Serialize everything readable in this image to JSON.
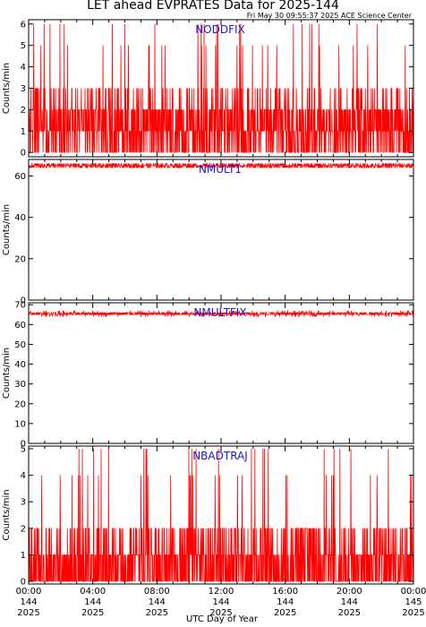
{
  "title": "LET ahead EVPRATES Data for 2025-144",
  "timestamp": "Fri May 30 09:55:37 2025 ACE Science Center",
  "x_axis_label": "UTC Day of Year",
  "colors": {
    "data": "#ff0000",
    "panel_label": "#1a1acc",
    "axes": "#000000"
  },
  "x_ticks": [
    {
      "time": "00:00",
      "day": "144",
      "year": "2025"
    },
    {
      "time": "04:00",
      "day": "144",
      "year": "2025"
    },
    {
      "time": "08:00",
      "day": "144",
      "year": "2025"
    },
    {
      "time": "12:00",
      "day": "144",
      "year": "2025"
    },
    {
      "time": "16:00",
      "day": "144",
      "year": "2025"
    },
    {
      "time": "20:00",
      "day": "144",
      "year": "2025"
    },
    {
      "time": "00:00",
      "day": "145",
      "year": "2025"
    }
  ],
  "chart_data": [
    {
      "type": "line",
      "label": "NODDFIX",
      "ylabel": "Counts/min",
      "xlim": [
        0,
        24
      ],
      "ylim": [
        -0.2,
        6.2
      ],
      "yticks": [
        0,
        1,
        2,
        3,
        4,
        5,
        6
      ],
      "level": "0-6 counts/min, mostly 0-3 with frequent spikes to 4-6",
      "mean": 1.6,
      "noise": 2.6,
      "min": 0,
      "max": 6
    },
    {
      "type": "line",
      "label": "NMULT1",
      "ylabel": "Counts/min",
      "xlim": [
        0,
        24
      ],
      "ylim": [
        0,
        68
      ],
      "yticks": [
        0,
        20,
        40,
        60
      ],
      "level": "steady about 63-67 counts/min",
      "mean": 65,
      "noise": 2.2,
      "min": 61,
      "max": 68
    },
    {
      "type": "line",
      "label": "NMULTFIX",
      "ylabel": "Counts/min",
      "xlim": [
        0,
        24
      ],
      "ylim": [
        0,
        71
      ],
      "yticks": [
        0,
        10,
        20,
        30,
        40,
        50,
        60,
        70
      ],
      "level": "steady about 63-68 counts/min",
      "mean": 65.5,
      "noise": 2.2,
      "min": 61,
      "max": 69
    },
    {
      "type": "line",
      "label": "NBADTRAJ",
      "ylabel": "Counts/min",
      "xlim": [
        0,
        24
      ],
      "ylim": [
        -0.1,
        5.1
      ],
      "yticks": [
        0,
        1,
        2,
        3,
        4,
        5
      ],
      "level": "0-5 counts/min, mostly 0-2 with spikes to 3-5",
      "mean": 1.0,
      "noise": 2.2,
      "min": 0,
      "max": 5
    }
  ]
}
